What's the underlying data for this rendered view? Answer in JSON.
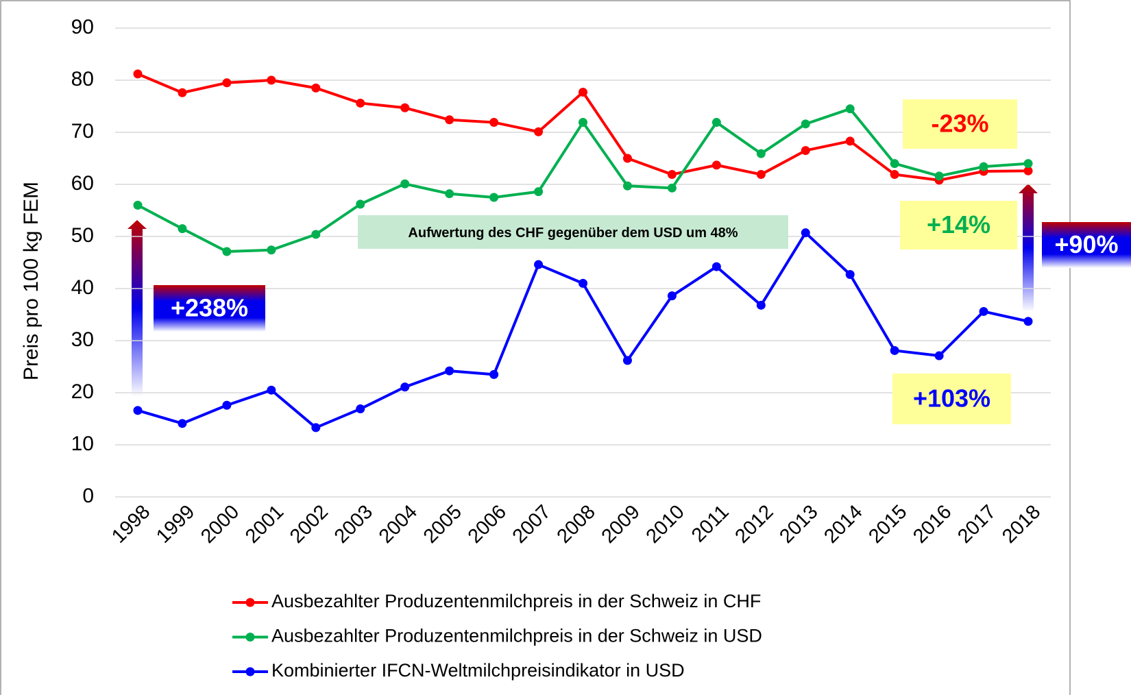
{
  "chart_data": {
    "type": "line",
    "y_label": "Preis pro 100 kg FEM",
    "categories": [
      "1998",
      "1999",
      "2000",
      "2001",
      "2002",
      "2003",
      "2004",
      "2005",
      "2006",
      "2007",
      "2008",
      "2009",
      "2010",
      "2011",
      "2012",
      "2013",
      "2014",
      "2015",
      "2016",
      "2017",
      "2018"
    ],
    "series": [
      {
        "name": "Ausbezahlter Produzentenmilchpreis in der Schweiz in CHF",
        "color": "#ff0000",
        "values": [
          81.2,
          77.6,
          79.5,
          80,
          78.5,
          75.6,
          74.7,
          72.4,
          71.9,
          70.1,
          77.7,
          65,
          61.9,
          63.7,
          61.9,
          66.5,
          68.3,
          61.9,
          60.8,
          62.5,
          62.6
        ]
      },
      {
        "name": "Ausbezahlter Produzentenmilchpreis in der Schweiz in USD",
        "color": "#00b050",
        "values": [
          56,
          51.5,
          47.1,
          47.4,
          50.4,
          56.2,
          60.1,
          58.2,
          57.5,
          58.6,
          71.9,
          59.7,
          59.3,
          71.9,
          65.9,
          71.6,
          74.5,
          64,
          61.6,
          63.4,
          64
        ]
      },
      {
        "name": "Kombinierter IFCN-Weltmilchpreisindikator in USD",
        "color": "#0000ff",
        "values": [
          16.6,
          14.1,
          17.6,
          20.5,
          13.3,
          16.9,
          21.1,
          24.2,
          23.5,
          44.6,
          41,
          26.2,
          38.6,
          44.2,
          36.8,
          50.7,
          42.7,
          28.1,
          27.1,
          35.6,
          33.7
        ]
      }
    ],
    "ylim": [
      0,
      90
    ],
    "yticks": [
      0,
      10,
      20,
      30,
      40,
      50,
      60,
      70,
      80,
      90
    ],
    "grid": true,
    "legend": "bottom",
    "annotations": [
      "-23%",
      "+14%",
      "+103%",
      "+238%",
      "+90%",
      "Aufwertung des CHF gegenüber dem USD um 48%"
    ]
  }
}
